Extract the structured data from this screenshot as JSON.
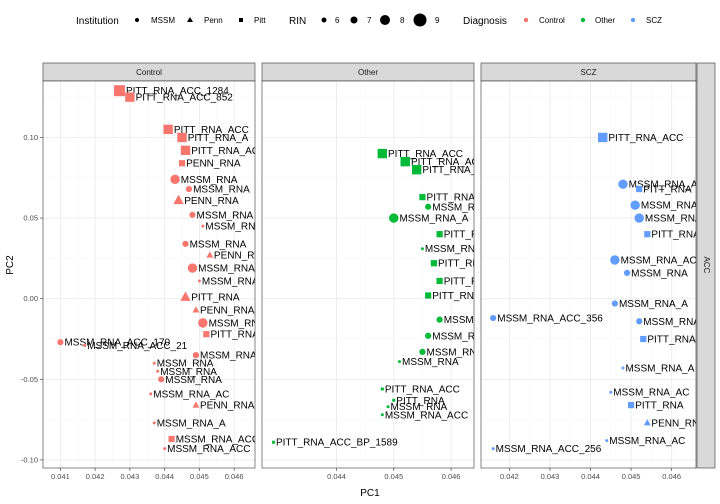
{
  "legend": {
    "institution": {
      "title": "Institution",
      "items": [
        {
          "label": "MSSM",
          "shape": "circle"
        },
        {
          "label": "Penn",
          "shape": "triangle"
        },
        {
          "label": "Pitt",
          "shape": "square"
        }
      ]
    },
    "rin": {
      "title": "RIN",
      "items": [
        "6",
        "7",
        "8",
        "9"
      ]
    },
    "diagnosis": {
      "title": "Diagnosis",
      "items": [
        {
          "label": "Control",
          "color": "#F8766D"
        },
        {
          "label": "Other",
          "color": "#00BA38"
        },
        {
          "label": "SCZ",
          "color": "#619CFF"
        }
      ]
    }
  },
  "strip_right": "ACC",
  "chart_data": {
    "type": "scatter",
    "xlabel": "PC1",
    "ylabel": "PC2",
    "ylim": [
      -0.105,
      0.135
    ],
    "yticks": [
      "0.10",
      "0.05",
      "0.00",
      "-0.05",
      "-0.10"
    ],
    "grid": true,
    "legend_position": "top",
    "panels": [
      {
        "name": "Control",
        "color": "#F8766D",
        "xlim": [
          0.0405,
          0.0466
        ],
        "xticks": [
          "0.041",
          "0.042",
          "0.043",
          "0.044",
          "0.045",
          "0.046"
        ],
        "points": [
          {
            "x": 0.0427,
            "y": 0.129,
            "label": "PITT_RNA_ACC_1284",
            "shape": "square",
            "rin": 8.5
          },
          {
            "x": 0.043,
            "y": 0.125,
            "label": "PITT_RNA_ACC_852",
            "shape": "square",
            "rin": 8
          },
          {
            "x": 0.0441,
            "y": 0.105,
            "label": "PITT_RNA_ACC",
            "shape": "square",
            "rin": 8
          },
          {
            "x": 0.0445,
            "y": 0.1,
            "label": "PITT_RNA_A",
            "shape": "square",
            "rin": 8
          },
          {
            "x": 0.0446,
            "y": 0.092,
            "label": "PITT_RNA_AC",
            "shape": "square",
            "rin": 8
          },
          {
            "x": 0.0445,
            "y": 0.084,
            "label": "PENN_RNA",
            "shape": "square",
            "rin": 7
          },
          {
            "x": 0.0443,
            "y": 0.074,
            "label": "MSSM_RNA",
            "shape": "circle",
            "rin": 8
          },
          {
            "x": 0.0447,
            "y": 0.068,
            "label": "MSSM_RNA",
            "shape": "circle",
            "rin": 7
          },
          {
            "x": 0.0444,
            "y": 0.061,
            "label": "PENN_RNA",
            "shape": "triangle",
            "rin": 8
          },
          {
            "x": 0.0448,
            "y": 0.052,
            "label": "MSSM_RNA",
            "shape": "circle",
            "rin": 7
          },
          {
            "x": 0.0451,
            "y": 0.045,
            "label": "MSSM_RNA",
            "shape": "circle",
            "rin": 6
          },
          {
            "x": 0.0446,
            "y": 0.034,
            "label": "MSSM_RNA",
            "shape": "circle",
            "rin": 7
          },
          {
            "x": 0.0453,
            "y": 0.027,
            "label": "PENN_RNA",
            "shape": "triangle",
            "rin": 7
          },
          {
            "x": 0.0448,
            "y": 0.019,
            "label": "MSSM_RNA",
            "shape": "circle",
            "rin": 8
          },
          {
            "x": 0.045,
            "y": 0.011,
            "label": "MSSM_RNA",
            "shape": "circle",
            "rin": 6
          },
          {
            "x": 0.0446,
            "y": 0.001,
            "label": "PITT_RNA",
            "shape": "triangle",
            "rin": 8
          },
          {
            "x": 0.0449,
            "y": -0.007,
            "label": "PENN_RNA",
            "shape": "triangle",
            "rin": 7
          },
          {
            "x": 0.0451,
            "y": -0.015,
            "label": "MSSM_RNA",
            "shape": "circle",
            "rin": 8
          },
          {
            "x": 0.0452,
            "y": -0.022,
            "label": "PITT_RNA",
            "shape": "square",
            "rin": 7
          },
          {
            "x": 0.041,
            "y": -0.027,
            "label": "MSSM_RNA_ACC_170",
            "shape": "circle",
            "rin": 7
          },
          {
            "x": 0.0417,
            "y": -0.029,
            "label": "MSSM_RNA_ACC_21",
            "shape": "circle",
            "rin": 6
          },
          {
            "x": 0.0449,
            "y": -0.035,
            "label": "MSSM_RNA",
            "shape": "circle",
            "rin": 7
          },
          {
            "x": 0.0437,
            "y": -0.04,
            "label": "MSSM_RNA",
            "shape": "circle",
            "rin": 6
          },
          {
            "x": 0.0438,
            "y": -0.045,
            "label": "MSSM_RNA",
            "shape": "circle",
            "rin": 6
          },
          {
            "x": 0.0439,
            "y": -0.05,
            "label": "MSSM_RNA",
            "shape": "circle",
            "rin": 7
          },
          {
            "x": 0.0436,
            "y": -0.059,
            "label": "MSSM_RNA_AC",
            "shape": "circle",
            "rin": 6
          },
          {
            "x": 0.0449,
            "y": -0.066,
            "label": "PENN_RNA",
            "shape": "triangle",
            "rin": 7
          },
          {
            "x": 0.0437,
            "y": -0.077,
            "label": "MSSM_RNA_A",
            "shape": "circle",
            "rin": 6
          },
          {
            "x": 0.0442,
            "y": -0.087,
            "label": "MSSM_RNA_ACC",
            "shape": "square",
            "rin": 7
          },
          {
            "x": 0.044,
            "y": -0.093,
            "label": "MSSM_RNA_ACC",
            "shape": "circle",
            "rin": 6
          }
        ]
      },
      {
        "name": "Other",
        "color": "#00BA38",
        "xlim": [
          0.0427,
          0.0464
        ],
        "xticks": [
          "0.044",
          "0.045",
          "0.046"
        ],
        "points": [
          {
            "x": 0.0448,
            "y": 0.09,
            "label": "PITT_RNA_ACC",
            "shape": "square",
            "rin": 8
          },
          {
            "x": 0.0452,
            "y": 0.085,
            "label": "PITT_RNA_ACC",
            "shape": "square",
            "rin": 8
          },
          {
            "x": 0.0454,
            "y": 0.08,
            "label": "PITT_RNA_A",
            "shape": "square",
            "rin": 8
          },
          {
            "x": 0.0455,
            "y": 0.063,
            "label": "PITT_RNA_ACC",
            "shape": "square",
            "rin": 7
          },
          {
            "x": 0.0456,
            "y": 0.057,
            "label": "MSSM_RNA",
            "shape": "circle",
            "rin": 7
          },
          {
            "x": 0.045,
            "y": 0.05,
            "label": "MSSM_RNA_A",
            "shape": "circle",
            "rin": 8
          },
          {
            "x": 0.0458,
            "y": 0.04,
            "label": "PITT_RNA",
            "shape": "square",
            "rin": 7
          },
          {
            "x": 0.0455,
            "y": 0.031,
            "label": "MSSM_RNA",
            "shape": "circle",
            "rin": 6
          },
          {
            "x": 0.0457,
            "y": 0.022,
            "label": "PITT_RNA",
            "shape": "square",
            "rin": 7
          },
          {
            "x": 0.0458,
            "y": 0.011,
            "label": "PITT_RNA",
            "shape": "square",
            "rin": 7
          },
          {
            "x": 0.0456,
            "y": 0.002,
            "label": "PITT_RNA",
            "shape": "square",
            "rin": 7
          },
          {
            "x": 0.0458,
            "y": -0.013,
            "label": "MSSM_RNA",
            "shape": "circle",
            "rin": 7
          },
          {
            "x": 0.0456,
            "y": -0.023,
            "label": "MSSM_RNA",
            "shape": "circle",
            "rin": 7
          },
          {
            "x": 0.0455,
            "y": -0.033,
            "label": "MSSM_RNA",
            "shape": "circle",
            "rin": 7
          },
          {
            "x": 0.0451,
            "y": -0.039,
            "label": "MSSM_RNA",
            "shape": "circle",
            "rin": 6
          },
          {
            "x": 0.0448,
            "y": -0.056,
            "label": "PITT_RNA_ACC",
            "shape": "square",
            "rin": 6
          },
          {
            "x": 0.045,
            "y": -0.063,
            "label": "PITT_RNA",
            "shape": "square",
            "rin": 6
          },
          {
            "x": 0.0449,
            "y": -0.067,
            "label": "MSSM_RNA",
            "shape": "circle",
            "rin": 6
          },
          {
            "x": 0.0448,
            "y": -0.072,
            "label": "MSSM_RNA_ACC",
            "shape": "circle",
            "rin": 6
          },
          {
            "x": 0.0429,
            "y": -0.089,
            "label": "PITT_RNA_ACC_BP_1589",
            "shape": "square",
            "rin": 6
          }
        ]
      },
      {
        "name": "SCZ",
        "color": "#619CFF",
        "xlim": [
          0.0413,
          0.0466
        ],
        "xticks": [
          "0.042",
          "0.043",
          "0.044",
          "0.045",
          "0.046"
        ],
        "points": [
          {
            "x": 0.0443,
            "y": 0.1,
            "label": "PITT_RNA_ACC",
            "shape": "square",
            "rin": 8
          },
          {
            "x": 0.0448,
            "y": 0.071,
            "label": "MSSM_RNA_A",
            "shape": "circle",
            "rin": 8
          },
          {
            "x": 0.0452,
            "y": 0.068,
            "label": "PITT_RNA",
            "shape": "square",
            "rin": 7
          },
          {
            "x": 0.0451,
            "y": 0.058,
            "label": "MSSM_RNA",
            "shape": "circle",
            "rin": 8
          },
          {
            "x": 0.0452,
            "y": 0.05,
            "label": "MSSM_RNA",
            "shape": "circle",
            "rin": 8
          },
          {
            "x": 0.0454,
            "y": 0.04,
            "label": "PITT_RNA",
            "shape": "square",
            "rin": 7
          },
          {
            "x": 0.0446,
            "y": 0.024,
            "label": "MSSM_RNA_AC",
            "shape": "circle",
            "rin": 8
          },
          {
            "x": 0.0449,
            "y": 0.016,
            "label": "MSSM_RNA",
            "shape": "circle",
            "rin": 7
          },
          {
            "x": 0.0446,
            "y": -0.003,
            "label": "MSSM_RNA_A",
            "shape": "circle",
            "rin": 7
          },
          {
            "x": 0.0416,
            "y": -0.012,
            "label": "MSSM_RNA_ACC_356",
            "shape": "circle",
            "rin": 7
          },
          {
            "x": 0.0452,
            "y": -0.014,
            "label": "MSSM_RNA",
            "shape": "circle",
            "rin": 7
          },
          {
            "x": 0.0453,
            "y": -0.025,
            "label": "PITT_RNA",
            "shape": "square",
            "rin": 7
          },
          {
            "x": 0.0448,
            "y": -0.043,
            "label": "MSSM_RNA_A",
            "shape": "circle",
            "rin": 6
          },
          {
            "x": 0.0445,
            "y": -0.058,
            "label": "MSSM_RNA_AC",
            "shape": "circle",
            "rin": 6
          },
          {
            "x": 0.045,
            "y": -0.066,
            "label": "PITT_RNA",
            "shape": "square",
            "rin": 7
          },
          {
            "x": 0.0454,
            "y": -0.077,
            "label": "PENN_RNA",
            "shape": "triangle",
            "rin": 7
          },
          {
            "x": 0.0444,
            "y": -0.088,
            "label": "MSSM_RNA_AC",
            "shape": "circle",
            "rin": 6
          },
          {
            "x": 0.0416,
            "y": -0.093,
            "label": "MSSM_RNA_ACC_256",
            "shape": "circle",
            "rin": 6
          }
        ]
      }
    ]
  }
}
